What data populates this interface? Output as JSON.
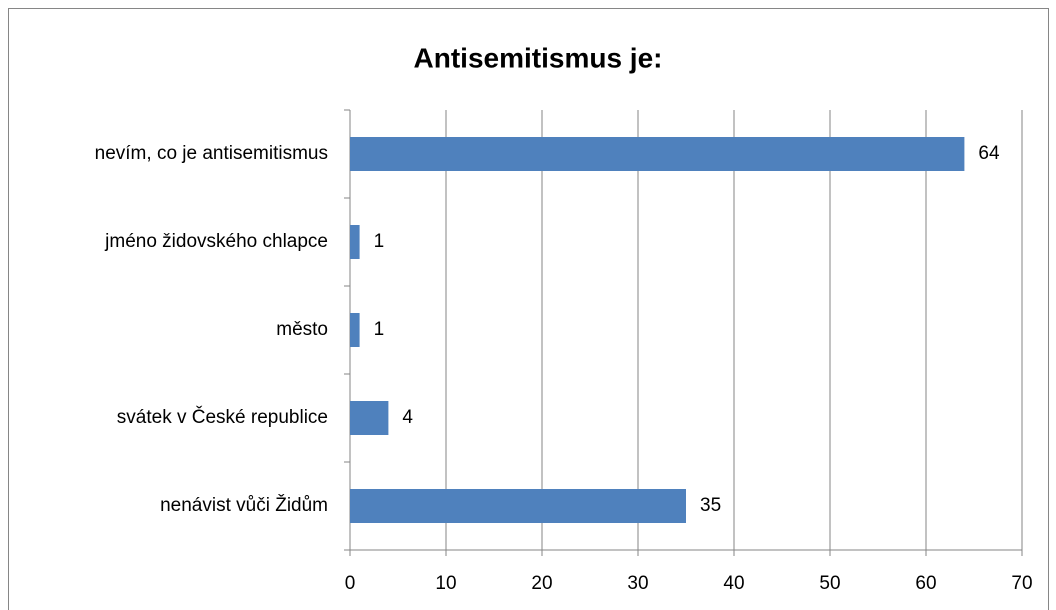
{
  "chart_data": {
    "type": "bar",
    "orientation": "horizontal",
    "title": "Antisemitismus je:",
    "categories": [
      "nevím, co je antisemitismus",
      "jméno židovského chlapce",
      "město",
      "svátek v České republice",
      "nenávist vůči Židům"
    ],
    "values": [
      64,
      1,
      1,
      4,
      35
    ],
    "color": "#4f81bd",
    "xlim": [
      0,
      70
    ],
    "xticks": [
      0,
      10,
      20,
      30,
      40,
      50,
      60,
      70
    ],
    "grid": true,
    "data_labels": true
  }
}
